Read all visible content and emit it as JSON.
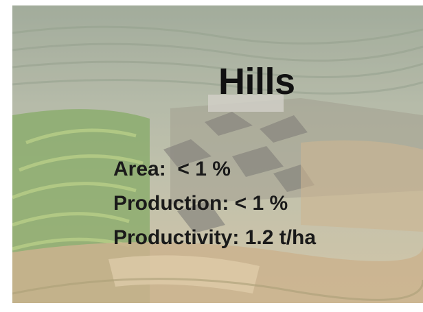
{
  "slide": {
    "title": "Hills",
    "lines": [
      "Area:  < 1 %",
      "Production: < 1 %",
      "Productivity: 1.2 t/ha"
    ]
  }
}
